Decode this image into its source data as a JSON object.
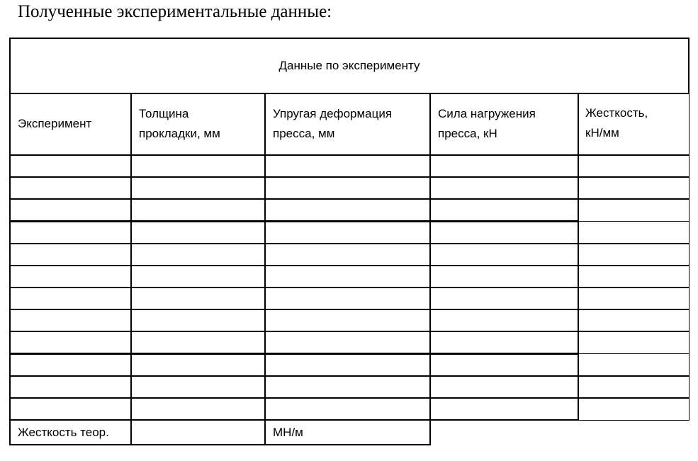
{
  "title": "Полученные экспериментальные данные:",
  "table": {
    "caption": "Данные по эксперименту",
    "columns": [
      [
        "Эксперимент"
      ],
      [
        "Толщина",
        "прокладки, мм"
      ],
      [
        "Упругая деформация",
        "пресса, мм"
      ],
      [
        "Сила нагружения",
        "пресса, кН"
      ],
      [
        "Жесткость,",
        "кН/мм"
      ]
    ],
    "empty_rows": 12,
    "footer": {
      "label": "Жесткость теор.",
      "value": "",
      "unit": "МН/м"
    }
  }
}
